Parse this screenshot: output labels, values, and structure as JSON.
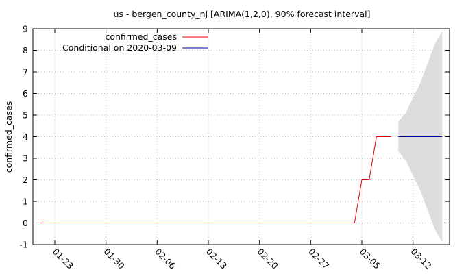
{
  "chart_data": {
    "type": "line",
    "title": "us - bergen_county_nj [ARIMA(1,2,0), 90% forecast interval]",
    "xlabel": "",
    "ylabel": "confirmed_cases",
    "x_type": "date",
    "xlim": [
      "2020-01-20",
      "2020-03-17"
    ],
    "ylim": [
      -1,
      9
    ],
    "yticks": [
      -1,
      0,
      1,
      2,
      3,
      4,
      5,
      6,
      7,
      8,
      9
    ],
    "xticks": [
      {
        "date": "2020-01-23",
        "label": "01-23"
      },
      {
        "date": "2020-01-30",
        "label": "01-30"
      },
      {
        "date": "2020-02-06",
        "label": "02-06"
      },
      {
        "date": "2020-02-13",
        "label": "02-13"
      },
      {
        "date": "2020-02-20",
        "label": "02-20"
      },
      {
        "date": "2020-02-27",
        "label": "02-27"
      },
      {
        "date": "2020-03-05",
        "label": "03-05"
      },
      {
        "date": "2020-03-12",
        "label": "03-12"
      }
    ],
    "grid": true,
    "legend_position": "top-left",
    "series": [
      {
        "name": "confirmed_cases",
        "color": "#e00000",
        "points": [
          {
            "x": "2020-01-21",
            "y": 0
          },
          {
            "x": "2020-03-04",
            "y": 0
          },
          {
            "x": "2020-03-05",
            "y": 2
          },
          {
            "x": "2020-03-06",
            "y": 2
          },
          {
            "x": "2020-03-07",
            "y": 4
          },
          {
            "x": "2020-03-09",
            "y": 4
          }
        ]
      },
      {
        "name": "Conditional on 2020-03-09",
        "color": "#0000a0",
        "points": [
          {
            "x": "2020-03-10",
            "y": 4
          },
          {
            "x": "2020-03-16",
            "y": 4
          }
        ]
      }
    ],
    "forecast_interval": {
      "color": "#dcdcdc",
      "points": [
        {
          "x": "2020-03-10",
          "lower": 3.3,
          "upper": 4.7
        },
        {
          "x": "2020-03-11",
          "lower": 2.9,
          "upper": 5.1
        },
        {
          "x": "2020-03-12",
          "lower": 2.2,
          "upper": 5.8
        },
        {
          "x": "2020-03-13",
          "lower": 1.5,
          "upper": 6.5
        },
        {
          "x": "2020-03-14",
          "lower": 0.6,
          "upper": 7.4
        },
        {
          "x": "2020-03-15",
          "lower": -0.3,
          "upper": 8.3
        },
        {
          "x": "2020-03-16",
          "lower": -0.9,
          "upper": 8.9
        }
      ]
    }
  }
}
